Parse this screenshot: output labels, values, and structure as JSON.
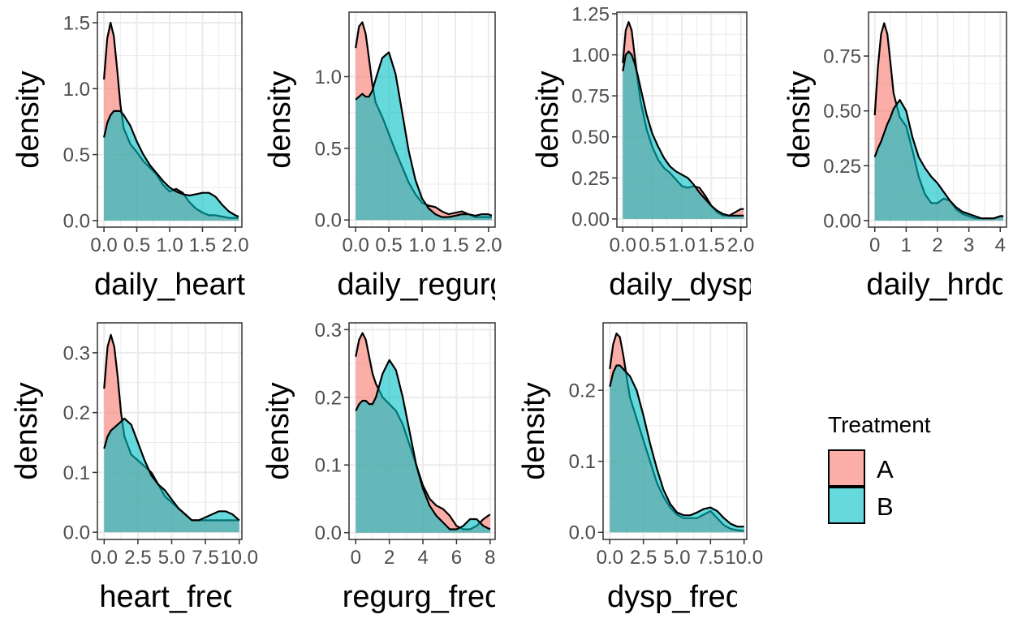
{
  "colors": {
    "A": "#F8766D",
    "B": "#00BFC4",
    "grid": "#EBEBEB",
    "frame": "#333333"
  },
  "legend": {
    "title": "Treatment",
    "items": [
      {
        "label": "A",
        "color": "#F8766D"
      },
      {
        "label": "B",
        "color": "#00BFC4"
      }
    ]
  },
  "chart_data": [
    {
      "type": "area",
      "xlabel": "daily_heart",
      "ylabel": "density",
      "xlim": [
        -0.1,
        2.1
      ],
      "ylim": [
        -0.05,
        1.58
      ],
      "xticks": [
        0.0,
        0.5,
        1.0,
        1.5,
        2.0
      ],
      "xtick_labels": [
        "0.0",
        "0.5",
        "1.0",
        "1.5",
        "2.0"
      ],
      "yticks": [
        0.0,
        0.5,
        1.0,
        1.5
      ],
      "ytick_labels": [
        "0.0",
        "0.5",
        "1.0",
        "1.5"
      ],
      "series": [
        {
          "name": "A",
          "x": [
            0,
            0.05,
            0.1,
            0.15,
            0.2,
            0.25,
            0.3,
            0.4,
            0.5,
            0.6,
            0.7,
            0.8,
            0.9,
            1.0,
            1.1,
            1.2,
            1.3,
            1.4,
            1.5,
            1.6,
            1.7,
            1.8,
            1.9,
            2.0,
            2.05
          ],
          "y": [
            1.07,
            1.38,
            1.5,
            1.4,
            1.15,
            0.88,
            0.7,
            0.58,
            0.52,
            0.45,
            0.4,
            0.35,
            0.27,
            0.22,
            0.24,
            0.21,
            0.14,
            0.09,
            0.06,
            0.04,
            0.04,
            0.03,
            0.02,
            0.02,
            0.02
          ]
        },
        {
          "name": "B",
          "x": [
            0,
            0.05,
            0.1,
            0.15,
            0.2,
            0.25,
            0.3,
            0.4,
            0.5,
            0.6,
            0.7,
            0.8,
            0.9,
            1.0,
            1.1,
            1.2,
            1.3,
            1.4,
            1.5,
            1.6,
            1.7,
            1.8,
            1.9,
            2.0,
            2.05
          ],
          "y": [
            0.63,
            0.74,
            0.8,
            0.83,
            0.83,
            0.83,
            0.8,
            0.72,
            0.6,
            0.5,
            0.42,
            0.36,
            0.3,
            0.25,
            0.22,
            0.2,
            0.19,
            0.2,
            0.21,
            0.21,
            0.18,
            0.12,
            0.07,
            0.04,
            0.03
          ]
        }
      ]
    },
    {
      "type": "area",
      "xlabel": "daily_regurg",
      "ylabel": "density",
      "xlim": [
        -0.1,
        2.1
      ],
      "ylim": [
        -0.05,
        1.45
      ],
      "xticks": [
        0.0,
        0.5,
        1.0,
        1.5,
        2.0
      ],
      "xtick_labels": [
        "0.0",
        "0.5",
        "1.0",
        "1.5",
        "2.0"
      ],
      "yticks": [
        0.0,
        0.5,
        1.0
      ],
      "ytick_labels": [
        "0.0",
        "0.5",
        "1.0"
      ],
      "series": [
        {
          "name": "A",
          "x": [
            0,
            0.05,
            0.1,
            0.15,
            0.2,
            0.25,
            0.3,
            0.4,
            0.5,
            0.6,
            0.7,
            0.8,
            0.9,
            1.0,
            1.1,
            1.2,
            1.3,
            1.4,
            1.5,
            1.6,
            1.7,
            1.8,
            1.9,
            2.0,
            2.05
          ],
          "y": [
            1.2,
            1.35,
            1.38,
            1.3,
            1.13,
            0.95,
            0.82,
            0.72,
            0.6,
            0.48,
            0.37,
            0.26,
            0.18,
            0.12,
            0.1,
            0.09,
            0.06,
            0.04,
            0.05,
            0.06,
            0.04,
            0.02,
            0.02,
            0.02,
            0.02
          ]
        },
        {
          "name": "B",
          "x": [
            0,
            0.05,
            0.1,
            0.15,
            0.2,
            0.25,
            0.3,
            0.4,
            0.5,
            0.6,
            0.7,
            0.8,
            0.9,
            1.0,
            1.1,
            1.2,
            1.3,
            1.4,
            1.5,
            1.6,
            1.7,
            1.8,
            1.9,
            2.0,
            2.05
          ],
          "y": [
            0.84,
            0.86,
            0.88,
            0.86,
            0.86,
            0.9,
            0.98,
            1.13,
            1.17,
            1.02,
            0.75,
            0.48,
            0.28,
            0.15,
            0.08,
            0.04,
            0.02,
            0.02,
            0.03,
            0.04,
            0.04,
            0.03,
            0.04,
            0.04,
            0.03
          ]
        }
      ]
    },
    {
      "type": "area",
      "xlabel": "daily_dysp",
      "ylabel": "density",
      "xlim": [
        -0.1,
        2.1
      ],
      "ylim": [
        -0.05,
        1.26
      ],
      "xticks": [
        0.0,
        0.5,
        1.0,
        1.5,
        2.0
      ],
      "xtick_labels": [
        "0.0",
        "0.5",
        "1.0",
        "1.5",
        "2.0"
      ],
      "yticks": [
        0.0,
        0.25,
        0.5,
        0.75,
        1.0,
        1.25
      ],
      "ytick_labels": [
        "0.00",
        "0.25",
        "0.50",
        "0.75",
        "1.00",
        "1.25"
      ],
      "series": [
        {
          "name": "A",
          "x": [
            0,
            0.05,
            0.1,
            0.15,
            0.2,
            0.25,
            0.3,
            0.4,
            0.5,
            0.6,
            0.7,
            0.8,
            0.9,
            1.0,
            1.1,
            1.2,
            1.3,
            1.4,
            1.5,
            1.6,
            1.7,
            1.8,
            1.9,
            2.0,
            2.05
          ],
          "y": [
            0.95,
            1.15,
            1.2,
            1.15,
            1.0,
            0.85,
            0.72,
            0.55,
            0.44,
            0.36,
            0.31,
            0.28,
            0.24,
            0.2,
            0.19,
            0.2,
            0.19,
            0.14,
            0.08,
            0.04,
            0.02,
            0.02,
            0.04,
            0.06,
            0.06
          ]
        },
        {
          "name": "B",
          "x": [
            0,
            0.05,
            0.1,
            0.15,
            0.2,
            0.25,
            0.3,
            0.4,
            0.5,
            0.6,
            0.7,
            0.8,
            0.9,
            1.0,
            1.1,
            1.2,
            1.3,
            1.4,
            1.5,
            1.6,
            1.7,
            1.8,
            1.9,
            2.0,
            2.05
          ],
          "y": [
            0.9,
            1.0,
            1.02,
            1.0,
            0.95,
            0.88,
            0.8,
            0.64,
            0.52,
            0.44,
            0.37,
            0.32,
            0.29,
            0.27,
            0.25,
            0.21,
            0.16,
            0.12,
            0.08,
            0.05,
            0.03,
            0.02,
            0.02,
            0.02,
            0.02
          ]
        }
      ]
    },
    {
      "type": "area",
      "xlabel": "daily_hrdq",
      "ylabel": "density",
      "xlim": [
        -0.2,
        4.2
      ],
      "ylim": [
        -0.03,
        0.95
      ],
      "xticks": [
        0,
        1,
        2,
        3,
        4
      ],
      "xtick_labels": [
        "0",
        "1",
        "2",
        "3",
        "4"
      ],
      "yticks": [
        0.0,
        0.25,
        0.5,
        0.75
      ],
      "ytick_labels": [
        "0.00",
        "0.25",
        "0.50",
        "0.75"
      ],
      "series": [
        {
          "name": "A",
          "x": [
            0,
            0.1,
            0.2,
            0.3,
            0.4,
            0.5,
            0.6,
            0.8,
            1.0,
            1.2,
            1.4,
            1.6,
            1.8,
            2.0,
            2.2,
            2.4,
            2.6,
            2.8,
            3.0,
            3.2,
            3.4,
            3.6,
            3.8,
            4.0,
            4.1
          ],
          "y": [
            0.48,
            0.7,
            0.85,
            0.9,
            0.85,
            0.72,
            0.58,
            0.47,
            0.43,
            0.32,
            0.2,
            0.12,
            0.08,
            0.08,
            0.1,
            0.09,
            0.05,
            0.03,
            0.02,
            0.01,
            0.01,
            0.01,
            0.01,
            0.02,
            0.02
          ]
        },
        {
          "name": "B",
          "x": [
            0,
            0.1,
            0.2,
            0.3,
            0.4,
            0.5,
            0.6,
            0.8,
            1.0,
            1.2,
            1.4,
            1.6,
            1.8,
            2.0,
            2.2,
            2.4,
            2.6,
            2.8,
            3.0,
            3.2,
            3.4,
            3.6,
            3.8,
            4.0,
            4.1
          ],
          "y": [
            0.29,
            0.33,
            0.36,
            0.4,
            0.44,
            0.47,
            0.51,
            0.55,
            0.5,
            0.38,
            0.29,
            0.24,
            0.2,
            0.17,
            0.13,
            0.09,
            0.06,
            0.04,
            0.03,
            0.02,
            0.01,
            0.01,
            0.01,
            0.02,
            0.02
          ]
        }
      ]
    },
    {
      "type": "area",
      "xlabel": "heart_freq",
      "ylabel": "density",
      "xlim": [
        -0.5,
        10.2
      ],
      "ylim": [
        -0.012,
        0.35
      ],
      "xticks": [
        0,
        2.5,
        5,
        7.5,
        10
      ],
      "xtick_labels": [
        "0.0",
        "2.5",
        "5.0",
        "7.5",
        "10.0"
      ],
      "yticks": [
        0.0,
        0.1,
        0.2,
        0.3
      ],
      "ytick_labels": [
        "0.0",
        "0.1",
        "0.2",
        "0.3"
      ],
      "series": [
        {
          "name": "A",
          "x": [
            0,
            0.25,
            0.5,
            0.75,
            1.0,
            1.25,
            1.5,
            2.0,
            2.5,
            3.0,
            3.5,
            4.0,
            4.5,
            5.0,
            5.5,
            6.0,
            6.5,
            7.0,
            7.5,
            8.0,
            8.5,
            9.0,
            9.5,
            10.0
          ],
          "y": [
            0.24,
            0.31,
            0.33,
            0.31,
            0.26,
            0.2,
            0.16,
            0.13,
            0.12,
            0.11,
            0.1,
            0.08,
            0.06,
            0.05,
            0.04,
            0.03,
            0.02,
            0.02,
            0.02,
            0.02,
            0.02,
            0.02,
            0.02,
            0.02
          ]
        },
        {
          "name": "B",
          "x": [
            0,
            0.25,
            0.5,
            0.75,
            1.0,
            1.25,
            1.5,
            2.0,
            2.5,
            3.0,
            3.5,
            4.0,
            4.5,
            5.0,
            5.5,
            6.0,
            6.5,
            7.0,
            7.5,
            8.0,
            8.5,
            9.0,
            9.5,
            10.0
          ],
          "y": [
            0.14,
            0.16,
            0.17,
            0.175,
            0.18,
            0.185,
            0.19,
            0.18,
            0.15,
            0.12,
            0.095,
            0.08,
            0.07,
            0.055,
            0.04,
            0.03,
            0.02,
            0.02,
            0.025,
            0.03,
            0.035,
            0.035,
            0.03,
            0.02
          ]
        }
      ]
    },
    {
      "type": "area",
      "xlabel": "regurg_freq",
      "ylabel": "density",
      "xlim": [
        -0.4,
        8.3
      ],
      "ylim": [
        -0.01,
        0.31
      ],
      "xticks": [
        0,
        2,
        4,
        6,
        8
      ],
      "xtick_labels": [
        "0",
        "2",
        "4",
        "6",
        "8"
      ],
      "yticks": [
        0.0,
        0.1,
        0.2,
        0.3
      ],
      "ytick_labels": [
        "0.0",
        "0.1",
        "0.2",
        "0.3"
      ],
      "series": [
        {
          "name": "A",
          "x": [
            0,
            0.2,
            0.4,
            0.6,
            0.8,
            1.0,
            1.2,
            1.6,
            2.0,
            2.4,
            2.8,
            3.2,
            3.6,
            4.0,
            4.4,
            4.8,
            5.2,
            5.6,
            6.0,
            6.4,
            6.8,
            7.2,
            7.6,
            8.0
          ],
          "y": [
            0.26,
            0.285,
            0.295,
            0.285,
            0.26,
            0.235,
            0.22,
            0.2,
            0.19,
            0.18,
            0.16,
            0.13,
            0.1,
            0.07,
            0.05,
            0.04,
            0.035,
            0.025,
            0.01,
            0.005,
            0.005,
            0.01,
            0.02,
            0.027
          ]
        },
        {
          "name": "B",
          "x": [
            0,
            0.2,
            0.4,
            0.6,
            0.8,
            1.0,
            1.2,
            1.6,
            2.0,
            2.4,
            2.8,
            3.2,
            3.6,
            4.0,
            4.4,
            4.8,
            5.2,
            5.6,
            6.0,
            6.4,
            6.8,
            7.2,
            7.6,
            8.0
          ],
          "y": [
            0.18,
            0.19,
            0.195,
            0.195,
            0.19,
            0.19,
            0.2,
            0.235,
            0.255,
            0.24,
            0.2,
            0.15,
            0.1,
            0.065,
            0.04,
            0.025,
            0.015,
            0.005,
            0.005,
            0.01,
            0.02,
            0.02,
            0.01,
            0.005
          ]
        }
      ]
    },
    {
      "type": "area",
      "xlabel": "dysp_freq",
      "ylabel": "density",
      "xlim": [
        -0.5,
        10.2
      ],
      "ylim": [
        -0.01,
        0.295
      ],
      "xticks": [
        0,
        2.5,
        5,
        7.5,
        10
      ],
      "xtick_labels": [
        "0.0",
        "2.5",
        "5.0",
        "7.5",
        "10.0"
      ],
      "yticks": [
        0.0,
        0.1,
        0.2
      ],
      "ytick_labels": [
        "0.0",
        "0.1",
        "0.2"
      ],
      "series": [
        {
          "name": "A",
          "x": [
            0,
            0.25,
            0.5,
            0.75,
            1.0,
            1.25,
            1.5,
            2.0,
            2.5,
            3.0,
            3.5,
            4.0,
            4.5,
            5.0,
            5.5,
            6.0,
            6.5,
            7.0,
            7.5,
            8.0,
            8.5,
            9.0,
            9.5,
            10.0
          ],
          "y": [
            0.23,
            0.265,
            0.28,
            0.275,
            0.25,
            0.22,
            0.19,
            0.16,
            0.13,
            0.1,
            0.07,
            0.05,
            0.035,
            0.025,
            0.02,
            0.02,
            0.02,
            0.025,
            0.03,
            0.02,
            0.01,
            0.005,
            0.003,
            0.002
          ]
        },
        {
          "name": "B",
          "x": [
            0,
            0.25,
            0.5,
            0.75,
            1.0,
            1.25,
            1.5,
            2.0,
            2.5,
            3.0,
            3.5,
            4.0,
            4.5,
            5.0,
            5.5,
            6.0,
            6.5,
            7.0,
            7.5,
            8.0,
            8.5,
            9.0,
            9.5,
            10.0
          ],
          "y": [
            0.205,
            0.225,
            0.235,
            0.235,
            0.23,
            0.225,
            0.22,
            0.2,
            0.165,
            0.125,
            0.09,
            0.06,
            0.04,
            0.028,
            0.024,
            0.024,
            0.028,
            0.033,
            0.035,
            0.03,
            0.02,
            0.012,
            0.008,
            0.008
          ]
        }
      ]
    }
  ]
}
